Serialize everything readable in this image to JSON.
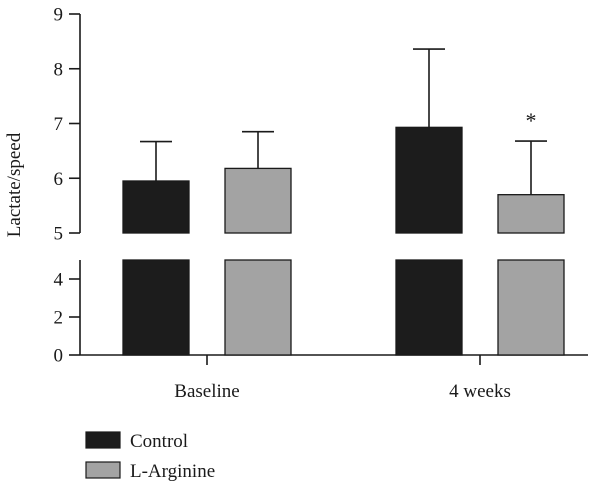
{
  "chart_data": {
    "type": "bar",
    "ylabel": "Lactate/speed",
    "xlabel": "",
    "categories": [
      "Baseline",
      "4 weeks"
    ],
    "series": [
      {
        "name": "Control",
        "values": [
          5.95,
          6.93
        ],
        "errors": [
          0.72,
          1.43
        ],
        "color": "#1c1c1c"
      },
      {
        "name": "L-Arginine",
        "values": [
          6.18,
          5.7
        ],
        "errors": [
          0.67,
          0.98
        ],
        "color": "#a3a3a3"
      }
    ],
    "y_axis_broken": true,
    "ylim_lower": [
      0,
      5
    ],
    "ylim_upper": [
      5,
      9
    ],
    "yticks_lower": [
      "0",
      "2",
      "4"
    ],
    "yticks_upper": [
      "5",
      "6",
      "7",
      "8",
      "9"
    ],
    "annotations": [
      {
        "text": "*",
        "category": "4 weeks",
        "series": "L-Arginine"
      }
    ],
    "legend_position": "bottom-left",
    "grid": false
  }
}
